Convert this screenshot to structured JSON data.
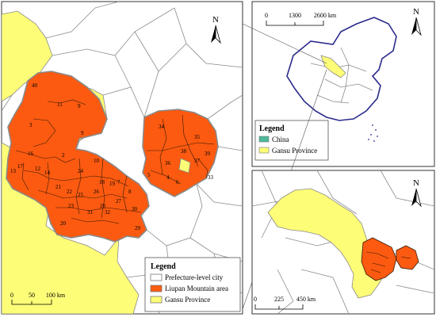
{
  "main_map": {
    "north": "N",
    "scale": [
      "0",
      "50",
      "100 km"
    ],
    "legend": {
      "title": "Legend",
      "items": [
        "Prefecture-level city",
        "Liupan Mountain area",
        "Gansu Province"
      ]
    },
    "county_labels": [
      "40",
      "11",
      "9",
      "3",
      "9",
      "2",
      "10",
      "16",
      "17",
      "12",
      "13",
      "14",
      "24",
      "21",
      "22",
      "23",
      "25",
      "26",
      "18",
      "19",
      "7",
      "8",
      "31",
      "32",
      "27",
      "28",
      "30",
      "20",
      "29",
      "34",
      "35",
      "38",
      "39",
      "37",
      "36",
      "5",
      "4",
      "6",
      "33"
    ]
  },
  "china_inset": {
    "north": "N",
    "scale": [
      "0",
      "1300",
      "2600 km"
    ],
    "legend": {
      "title": "Legend",
      "items": [
        "China",
        "Gansu Province"
      ]
    }
  },
  "region_inset": {
    "north": "N",
    "scale": [
      "0",
      "225",
      "450 km"
    ]
  },
  "colors": {
    "liupan": "#fb5a10",
    "gansu": "#fdfd78",
    "china": "#4db89a",
    "boundary": "#8a8a8a",
    "china_outline": "#2a2a8c"
  }
}
